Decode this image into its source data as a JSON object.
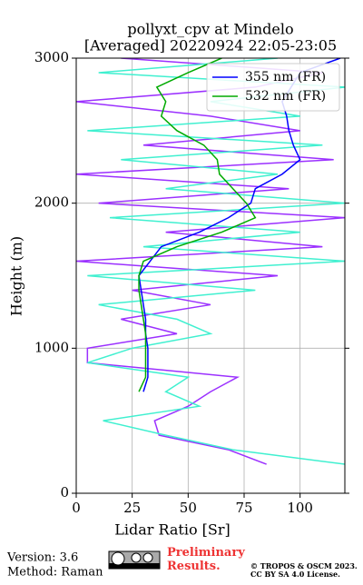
{
  "chart_data": {
    "type": "profile",
    "title": "pollyxt_cpv at Mindelo",
    "subtitle": "[Averaged] 20220924 22:05-23:05",
    "x_label": "Lidar Ratio [Sr]",
    "y_label": "Height (m)",
    "y": [
      200,
      300,
      400,
      500,
      600,
      700,
      800,
      900,
      1000,
      1100,
      1200,
      1300,
      1400,
      1500,
      1600,
      1700,
      1800,
      1900,
      2000,
      2100,
      2200,
      2300,
      2400,
      2500,
      2600,
      2700,
      2800,
      2900,
      3000
    ],
    "series": [
      {
        "color": "#9b30ff",
        "values": [
          85,
          68,
          37,
          35,
          50,
          60,
          72,
          5,
          5,
          45,
          20,
          60,
          25,
          90,
          0,
          110,
          40,
          120,
          10,
          95,
          0,
          115,
          30,
          100,
          60,
          0,
          80,
          110,
          20
        ]
      },
      {
        "color": "#40f0d0",
        "values": [
          120,
          70,
          40,
          12,
          55,
          40,
          50,
          5,
          25,
          60,
          45,
          10,
          80,
          5,
          120,
          30,
          100,
          15,
          120,
          40,
          90,
          20,
          110,
          5,
          100,
          60,
          120,
          10,
          90
        ]
      },
      {
        "name": "355 nm (FR)",
        "color": "#0000ff",
        "values": [
          null,
          null,
          null,
          null,
          null,
          30,
          32,
          32,
          32,
          31,
          31,
          30,
          29,
          28,
          33,
          38,
          55,
          68,
          78,
          80,
          92,
          100,
          97,
          95,
          94,
          92,
          96,
          100,
          118
        ]
      },
      {
        "name": "532 nm (FR)",
        "color": "#00aa00",
        "values": [
          null,
          null,
          null,
          null,
          null,
          28,
          31,
          31,
          31,
          31,
          30,
          29,
          28,
          28,
          30,
          45,
          65,
          80,
          76,
          70,
          64,
          63,
          57,
          45,
          38,
          40,
          36,
          50,
          65
        ]
      }
    ],
    "xlim": [
      0,
      120
    ],
    "xticks": [
      0,
      25,
      50,
      75,
      100
    ],
    "ylim": [
      0,
      3000
    ],
    "yticks": [
      0,
      1000,
      2000,
      3000
    ],
    "grid": true,
    "legend": "upper right"
  },
  "footer": {
    "version": "Version: 3.6",
    "method": "Method: Raman",
    "status": "Preliminary Results.",
    "copyright": "© TROPOS & OSCM 2023.",
    "license": "CC BY SA 4.0 License."
  }
}
